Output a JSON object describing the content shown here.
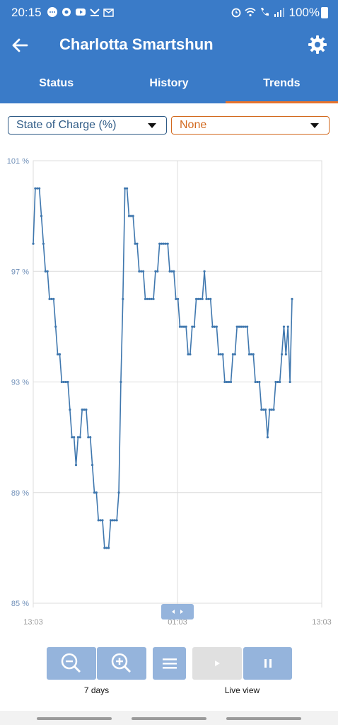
{
  "status_bar": {
    "time": "20:15",
    "battery_pct": "100%"
  },
  "app_bar": {
    "title": "Charlotta Smartshun"
  },
  "tabs": [
    {
      "label": "Status",
      "active": false
    },
    {
      "label": "History",
      "active": false
    },
    {
      "label": "Trends",
      "active": true
    }
  ],
  "selectors": {
    "primary": "State of Charge (%)",
    "secondary": "None"
  },
  "colors": {
    "accent": "#3a7bc8",
    "line": "#3f77ae",
    "tab_indicator": "#e8732c",
    "secondary_select": "#d2691e"
  },
  "chart_data": {
    "type": "line",
    "title": "",
    "xlabel": "",
    "ylabel": "",
    "ylim": [
      85,
      101
    ],
    "y_ticks": [
      "85 %",
      "89 %",
      "93 %",
      "97 %",
      "101 %"
    ],
    "x_ticks": [
      "13:03",
      "01:03",
      "13:03"
    ],
    "grid": true,
    "series": [
      {
        "values": [
          98,
          100,
          100,
          100,
          99,
          98,
          97,
          97,
          96,
          96,
          96,
          95,
          94,
          94,
          93,
          93,
          93,
          93,
          92,
          91,
          91,
          90,
          91,
          91,
          92,
          92,
          92,
          91,
          91,
          90,
          89,
          89,
          88,
          88,
          88,
          87,
          87,
          87,
          88,
          88,
          88,
          88,
          89,
          93,
          96,
          100,
          100,
          99,
          99,
          99,
          98,
          98,
          97,
          97,
          97,
          96,
          96,
          96,
          96,
          96,
          97,
          97,
          98,
          98,
          98,
          98,
          98,
          97,
          97,
          97,
          96,
          96,
          95,
          95,
          95,
          95,
          94,
          94,
          95,
          95,
          96,
          96,
          96,
          96,
          97,
          96,
          96,
          96,
          95,
          95,
          95,
          94,
          94,
          94,
          93,
          93,
          93,
          93,
          94,
          94,
          95,
          95,
          95,
          95,
          95,
          95,
          94,
          94,
          94,
          93,
          93,
          93,
          92,
          92,
          92,
          91,
          92,
          92,
          92,
          93,
          93,
          93,
          94,
          95,
          94,
          95,
          93,
          96
        ]
      }
    ]
  },
  "toolbar": {
    "range_label": "7 days",
    "live_label": "Live view"
  }
}
